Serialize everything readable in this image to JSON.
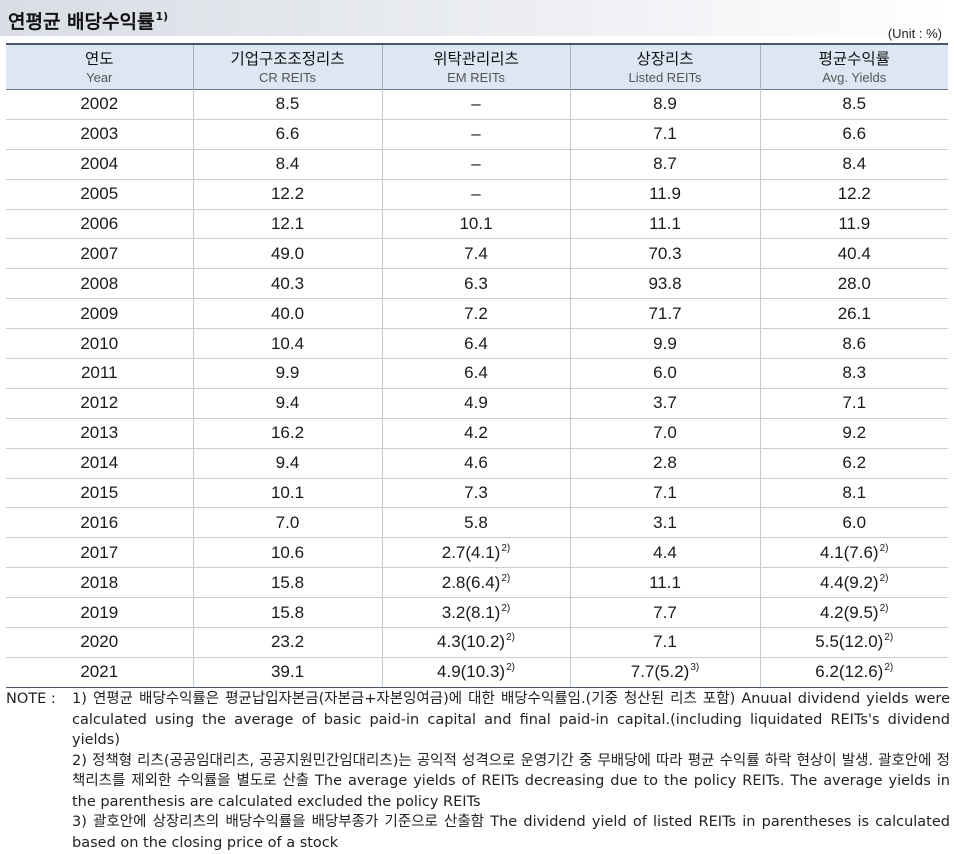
{
  "title": "연평균 배당수익률",
  "title_footnote": "1)",
  "unit": "(Unit : %)",
  "columns": [
    {
      "ko": "연도",
      "en": "Year"
    },
    {
      "ko": "기업구조조정리츠",
      "en": "CR REITs"
    },
    {
      "ko": "위탁관리리츠",
      "en": "EM REITs"
    },
    {
      "ko": "상장리츠",
      "en": "Listed REITs"
    },
    {
      "ko": "평균수익률",
      "en": "Avg. Yields"
    }
  ],
  "rows": [
    {
      "year": "2002",
      "cr": "8.5",
      "em": "–",
      "listed": "8.9",
      "avg": "8.5"
    },
    {
      "year": "2003",
      "cr": "6.6",
      "em": "–",
      "listed": "7.1",
      "avg": "6.6"
    },
    {
      "year": "2004",
      "cr": "8.4",
      "em": "–",
      "listed": "8.7",
      "avg": "8.4"
    },
    {
      "year": "2005",
      "cr": "12.2",
      "em": "–",
      "listed": "11.9",
      "avg": "12.2"
    },
    {
      "year": "2006",
      "cr": "12.1",
      "em": "10.1",
      "listed": "11.1",
      "avg": "11.9"
    },
    {
      "year": "2007",
      "cr": "49.0",
      "em": "7.4",
      "listed": "70.3",
      "avg": "40.4"
    },
    {
      "year": "2008",
      "cr": "40.3",
      "em": "6.3",
      "listed": "93.8",
      "avg": "28.0"
    },
    {
      "year": "2009",
      "cr": "40.0",
      "em": "7.2",
      "listed": "71.7",
      "avg": "26.1"
    },
    {
      "year": "2010",
      "cr": "10.4",
      "em": "6.4",
      "listed": "9.9",
      "avg": "8.6"
    },
    {
      "year": "2011",
      "cr": "9.9",
      "em": "6.4",
      "listed": "6.0",
      "avg": "8.3"
    },
    {
      "year": "2012",
      "cr": "9.4",
      "em": "4.9",
      "listed": "3.7",
      "avg": "7.1"
    },
    {
      "year": "2013",
      "cr": "16.2",
      "em": "4.2",
      "listed": "7.0",
      "avg": "9.2"
    },
    {
      "year": "2014",
      "cr": "9.4",
      "em": "4.6",
      "listed": "2.8",
      "avg": "6.2"
    },
    {
      "year": "2015",
      "cr": "10.1",
      "em": "7.3",
      "listed": "7.1",
      "avg": "8.1"
    },
    {
      "year": "2016",
      "cr": "7.0",
      "em": "5.8",
      "listed": "3.1",
      "avg": "6.0"
    },
    {
      "year": "2017",
      "cr": "10.6",
      "em": "2.7(4.1)",
      "em_fn": "2)",
      "listed": "4.4",
      "avg": "4.1(7.6)",
      "avg_fn": "2)"
    },
    {
      "year": "2018",
      "cr": "15.8",
      "em": "2.8(6.4)",
      "em_fn": "2)",
      "listed": "11.1",
      "avg": "4.4(9.2)",
      "avg_fn": "2)"
    },
    {
      "year": "2019",
      "cr": "15.8",
      "em": "3.2(8.1)",
      "em_fn": "2)",
      "listed": "7.7",
      "avg": "4.2(9.5)",
      "avg_fn": "2)"
    },
    {
      "year": "2020",
      "cr": "23.2",
      "em": "4.3(10.2)",
      "em_fn": "2)",
      "listed": "7.1",
      "avg": "5.5(12.0)",
      "avg_fn": "2)"
    },
    {
      "year": "2021",
      "cr": "39.1",
      "em": "4.9(10.3)",
      "em_fn": "2)",
      "listed": "7.7(5.2)",
      "listed_fn": "3)",
      "avg": "6.2(12.6)",
      "avg_fn": "2)"
    }
  ],
  "notes": {
    "label": "NOTE :",
    "items": [
      "1) 연평균 배당수익률은 평균납입자본금(자본금+자본잉여금)에 대한 배당수익률임.(기중 청산된 리츠 포함) Anuual dividend yields were calculated using the average of basic paid-in capital and final paid-in capital.(including liquidated REITs's dividend yields)",
      "2) 정책형 리츠(공공임대리츠, 공공지원민간임대리츠)는 공익적 성격으로 운영기간 중 무배당에 따라 평균 수익률 하락 현상이 발생. 괄호안에 정책리츠를 제외한 수익률을 별도로 산출 The average yields of REITs decreasing due to the policy REITs. The average yields in the parenthesis are calculated excluded the policy REITs",
      "3) 괄호안에 상장리츠의 배당수익률을 배당부종가 기준으로 산출함 The dividend yield of listed REITs in parentheses is calculated based on the closing price of a stock"
    ]
  }
}
